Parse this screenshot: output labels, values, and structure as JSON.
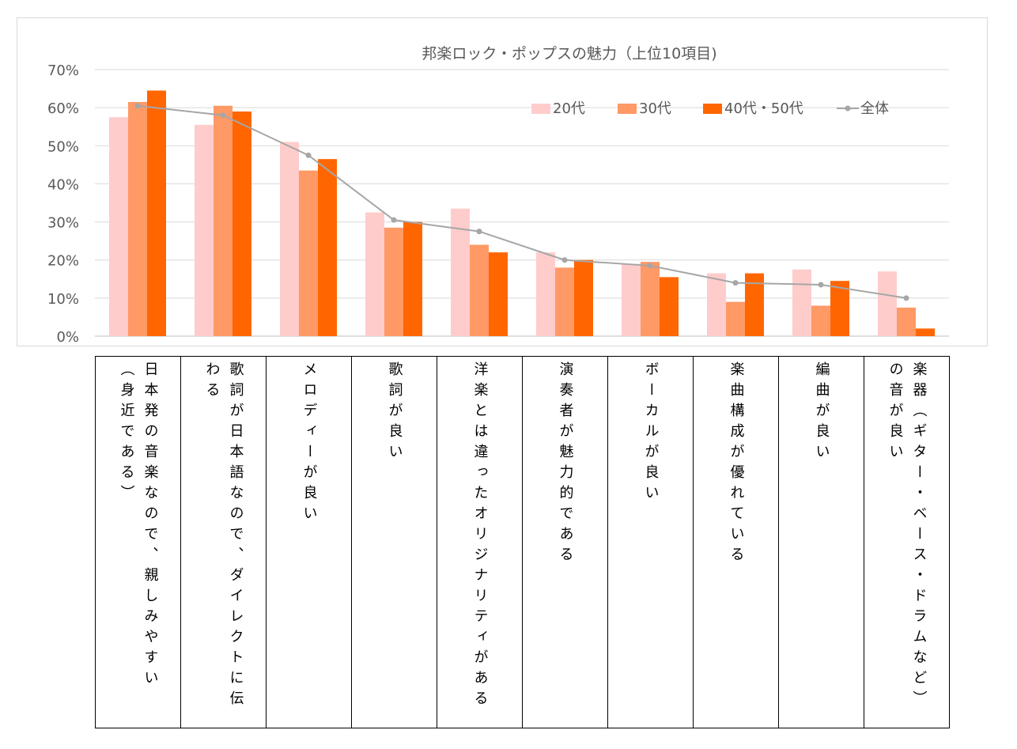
{
  "chart_data": {
    "type": "bar",
    "title": "邦楽ロック・ポップスの魅力（上位10項目)",
    "ylim": [
      0,
      70
    ],
    "yticks": [
      "0%",
      "10%",
      "20%",
      "30%",
      "40%",
      "50%",
      "60%",
      "70%"
    ],
    "grid": true,
    "legend_position": "top-right",
    "categories": [
      "日本発の音楽なので、親しみやすい（身近である）",
      "歌詞が日本語なので、ダイレクトに伝わる",
      "メロディーが良い",
      "歌詞が良い",
      "洋楽とは違ったオリジナリティがある",
      "演奏者が魅力的である",
      "ボーカルが良い",
      "楽曲構成が優れている",
      "編曲が良い",
      "楽器（ギター・ベース・ドラムなど）の音が良い"
    ],
    "series": [
      {
        "name": "20代",
        "type": "bar",
        "color": "#ffcccc",
        "values": [
          57.5,
          55.5,
          51,
          32.5,
          33.5,
          22,
          19,
          16.5,
          17.5,
          17
        ]
      },
      {
        "name": "30代",
        "type": "bar",
        "color": "#ff9966",
        "values": [
          61.5,
          60.5,
          43.5,
          28.5,
          24,
          18,
          19.5,
          9,
          8,
          7.5
        ]
      },
      {
        "name": "40代・50代",
        "type": "bar",
        "color": "#ff6600",
        "values": [
          64.5,
          59,
          46.5,
          30,
          22,
          20,
          15.5,
          16.5,
          14.5,
          2
        ]
      },
      {
        "name": "全体",
        "type": "line",
        "color": "#a6a6a6",
        "values": [
          60.5,
          58,
          47.5,
          30.5,
          27.5,
          20,
          18.5,
          14,
          13.5,
          10
        ]
      }
    ]
  }
}
